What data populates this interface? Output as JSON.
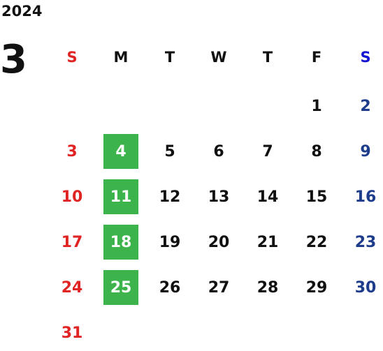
{
  "calendar": {
    "year": "2024",
    "month": "3",
    "weekdays": [
      "S",
      "M",
      "T",
      "W",
      "T",
      "F",
      "S"
    ],
    "weeks": [
      [
        null,
        null,
        null,
        null,
        null,
        1,
        2
      ],
      [
        3,
        4,
        5,
        6,
        7,
        8,
        9
      ],
      [
        10,
        11,
        12,
        13,
        14,
        15,
        16
      ],
      [
        17,
        18,
        19,
        20,
        21,
        22,
        23
      ],
      [
        24,
        25,
        26,
        27,
        28,
        29,
        30
      ],
      [
        31,
        null,
        null,
        null,
        null,
        null,
        null
      ]
    ]
  }
}
